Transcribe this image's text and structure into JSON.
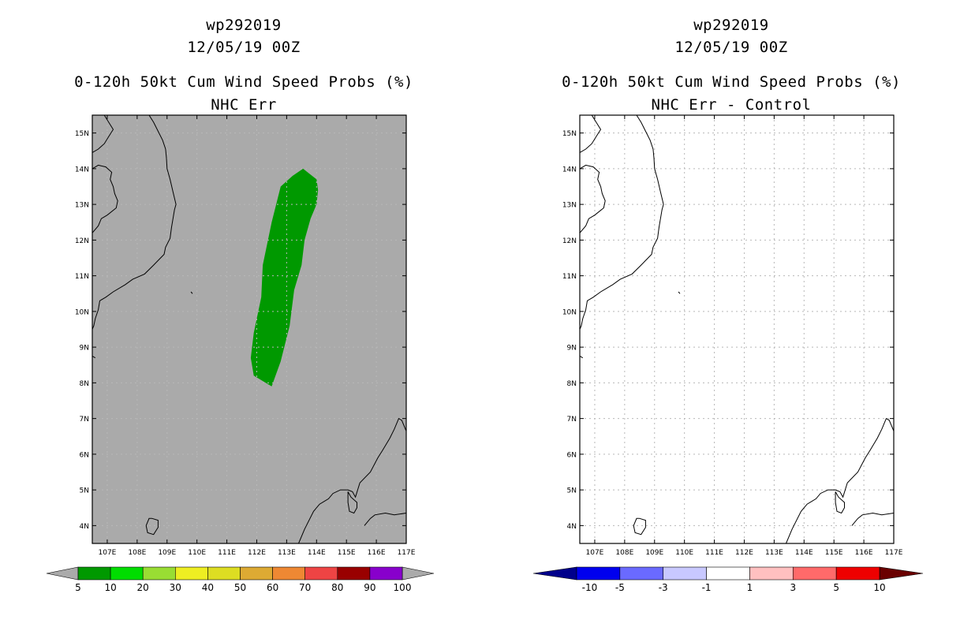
{
  "panels": [
    {
      "storm_id": "wp292019",
      "datetime": "12/05/19 00Z",
      "title": "0-120h 50kt Cum Wind Speed Probs (%)",
      "subtitle": "NHC Err"
    },
    {
      "storm_id": "wp292019",
      "datetime": "12/05/19 00Z",
      "title": "0-120h 50kt Cum Wind Speed Probs (%)",
      "subtitle": "NHC Err - Control"
    }
  ],
  "chart_data": [
    {
      "type": "heatmap",
      "title": "0-120h 50kt Cum Wind Speed Probs (%)",
      "subtitle": "NHC Err",
      "xlim": [
        106.5,
        117
      ],
      "ylim": [
        3.5,
        15.5
      ],
      "x_ticks": [
        107,
        108,
        109,
        110,
        111,
        112,
        113,
        114,
        115,
        116,
        117
      ],
      "x_tick_labels": [
        "107E",
        "108E",
        "109E",
        "110E",
        "111E",
        "112E",
        "113E",
        "114E",
        "115E",
        "116E",
        "117E"
      ],
      "y_ticks": [
        4,
        5,
        6,
        7,
        8,
        9,
        10,
        11,
        12,
        13,
        14,
        15
      ],
      "y_tick_labels": [
        "4N",
        "5N",
        "6N",
        "7N",
        "8N",
        "9N",
        "10N",
        "11N",
        "12N",
        "13N",
        "14N",
        "15N"
      ],
      "background_color": "#aaaaaa",
      "grid": true,
      "filled_regions": [
        {
          "range": "5-10",
          "color": "#009900",
          "outline_lonlat": [
            [
              113.55,
              14.0
            ],
            [
              114.0,
              13.7
            ],
            [
              114.05,
              13.4
            ],
            [
              114.0,
              13.0
            ],
            [
              113.8,
              12.6
            ],
            [
              113.6,
              12.0
            ],
            [
              113.5,
              11.3
            ],
            [
              113.25,
              10.6
            ],
            [
              113.1,
              9.6
            ],
            [
              112.8,
              8.6
            ],
            [
              112.5,
              7.9
            ],
            [
              111.9,
              8.2
            ],
            [
              111.8,
              8.7
            ],
            [
              111.9,
              9.4
            ],
            [
              112.15,
              10.4
            ],
            [
              112.2,
              11.3
            ],
            [
              112.5,
              12.5
            ],
            [
              112.8,
              13.5
            ],
            [
              113.2,
              13.8
            ],
            [
              113.55,
              14.0
            ]
          ]
        }
      ],
      "colorbar": {
        "labels": [
          "5",
          "10",
          "20",
          "30",
          "40",
          "50",
          "60",
          "70",
          "80",
          "90",
          "100"
        ],
        "colors": [
          "#009900",
          "#00dd00",
          "#99dd33",
          "#eeee22",
          "#dddd22",
          "#ddaa33",
          "#ee8833",
          "#ee4444",
          "#990000",
          "#8800cc"
        ],
        "under_color": "#aaaaaa",
        "over_color": "#aaaaaa"
      }
    },
    {
      "type": "heatmap",
      "title": "0-120h 50kt Cum Wind Speed Probs (%)",
      "subtitle": "NHC Err - Control",
      "xlim": [
        106.5,
        117
      ],
      "ylim": [
        3.5,
        15.5
      ],
      "x_ticks": [
        107,
        108,
        109,
        110,
        111,
        112,
        113,
        114,
        115,
        116,
        117
      ],
      "x_tick_labels": [
        "107E",
        "108E",
        "109E",
        "110E",
        "111E",
        "112E",
        "113E",
        "114E",
        "115E",
        "116E",
        "117E"
      ],
      "y_ticks": [
        4,
        5,
        6,
        7,
        8,
        9,
        10,
        11,
        12,
        13,
        14,
        15
      ],
      "y_tick_labels": [
        "4N",
        "5N",
        "6N",
        "7N",
        "8N",
        "9N",
        "10N",
        "11N",
        "12N",
        "13N",
        "14N",
        "15N"
      ],
      "background_color": "#ffffff",
      "grid": true,
      "filled_regions": [],
      "colorbar": {
        "labels": [
          "-10",
          "-5",
          "-3",
          "-1",
          "1",
          "3",
          "5",
          "10"
        ],
        "colors": [
          "#0000ee",
          "#6a6aff",
          "#c8c8ff",
          "#ffffff",
          "#ffc0c0",
          "#ff6a6a",
          "#ee0000"
        ],
        "under_color": "#00008b",
        "over_color": "#6a0000"
      }
    }
  ],
  "coastlines_lonlat": [
    [
      [
        106.9,
        15.5
      ],
      [
        107.05,
        15.3
      ],
      [
        107.2,
        15.1
      ],
      [
        107.05,
        14.9
      ],
      [
        106.9,
        14.7
      ],
      [
        106.7,
        14.55
      ],
      [
        106.5,
        14.45
      ]
    ],
    [
      [
        106.5,
        14.0
      ],
      [
        106.7,
        14.1
      ],
      [
        106.95,
        14.05
      ],
      [
        107.15,
        13.9
      ],
      [
        107.1,
        13.7
      ],
      [
        107.2,
        13.5
      ],
      [
        107.25,
        13.3
      ],
      [
        107.35,
        13.1
      ],
      [
        107.3,
        12.9
      ],
      [
        107.0,
        12.7
      ],
      [
        106.8,
        12.6
      ],
      [
        106.7,
        12.4
      ],
      [
        106.5,
        12.2
      ]
    ],
    [
      [
        108.4,
        15.5
      ],
      [
        108.55,
        15.3
      ],
      [
        108.7,
        15.05
      ],
      [
        108.85,
        14.8
      ],
      [
        108.95,
        14.55
      ],
      [
        108.98,
        14.3
      ],
      [
        109.0,
        14.0
      ],
      [
        109.1,
        13.7
      ],
      [
        109.2,
        13.35
      ],
      [
        109.3,
        13.0
      ],
      [
        109.25,
        12.85
      ],
      [
        109.2,
        12.6
      ],
      [
        109.15,
        12.35
      ],
      [
        109.1,
        12.05
      ],
      [
        108.95,
        11.8
      ],
      [
        108.9,
        11.6
      ],
      [
        108.55,
        11.3
      ],
      [
        108.25,
        11.05
      ],
      [
        107.85,
        10.9
      ],
      [
        107.6,
        10.75
      ],
      [
        107.2,
        10.55
      ],
      [
        106.95,
        10.4
      ],
      [
        106.75,
        10.3
      ],
      [
        106.7,
        10.05
      ],
      [
        106.6,
        9.8
      ],
      [
        106.55,
        9.6
      ],
      [
        106.5,
        9.5
      ]
    ],
    [
      [
        106.5,
        8.75
      ],
      [
        106.6,
        8.7
      ]
    ],
    [
      [
        109.8,
        10.55
      ],
      [
        109.85,
        10.5
      ]
    ],
    [
      [
        108.5,
        4.2
      ],
      [
        108.7,
        4.15
      ],
      [
        108.7,
        3.95
      ],
      [
        108.55,
        3.75
      ],
      [
        108.35,
        3.8
      ],
      [
        108.3,
        4.0
      ],
      [
        108.4,
        4.2
      ],
      [
        108.5,
        4.2
      ]
    ],
    [
      [
        113.4,
        3.5
      ],
      [
        113.6,
        3.9
      ],
      [
        113.9,
        4.4
      ],
      [
        114.1,
        4.6
      ],
      [
        114.4,
        4.75
      ],
      [
        114.55,
        4.9
      ],
      [
        114.8,
        5.0
      ],
      [
        115.05,
        5.0
      ],
      [
        115.2,
        4.95
      ],
      [
        115.3,
        4.8
      ],
      [
        115.45,
        5.2
      ],
      [
        115.8,
        5.5
      ],
      [
        116.05,
        5.9
      ],
      [
        116.2,
        6.1
      ],
      [
        116.45,
        6.45
      ],
      [
        116.6,
        6.7
      ],
      [
        116.75,
        7.0
      ],
      [
        116.85,
        6.95
      ],
      [
        116.95,
        6.75
      ],
      [
        117.0,
        6.65
      ]
    ],
    [
      [
        115.05,
        4.95
      ],
      [
        115.15,
        4.8
      ],
      [
        115.35,
        4.65
      ],
      [
        115.35,
        4.5
      ],
      [
        115.25,
        4.35
      ],
      [
        115.1,
        4.4
      ],
      [
        115.05,
        4.65
      ],
      [
        115.05,
        4.95
      ]
    ],
    [
      [
        115.6,
        4.0
      ],
      [
        115.8,
        4.2
      ],
      [
        115.95,
        4.3
      ],
      [
        116.3,
        4.35
      ],
      [
        116.6,
        4.3
      ],
      [
        117.0,
        4.35
      ]
    ],
    [
      [
        117.0,
        7.95
      ],
      [
        117.03,
        8.0
      ]
    ]
  ]
}
